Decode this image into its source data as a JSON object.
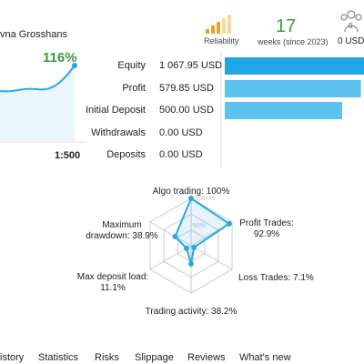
{
  "profile": {
    "name": "vna Grosshans",
    "growth": "116%",
    "leverage": "1:500"
  },
  "stats": {
    "reliability": "Reliability",
    "weeks": "17",
    "weeks_label": "weeks (since 2023)",
    "subscribers": "0",
    "subscribers_funds": "0 USD"
  },
  "balance": {
    "rows": [
      {
        "label": "Equity",
        "text": "1 067.95 USD",
        "amount": 1067.95
      },
      {
        "label": "Profit",
        "text": "579.85 USD",
        "amount": 579.85
      },
      {
        "label": "Initial Deposit",
        "text": "500.00 USD",
        "amount": 500.0
      },
      {
        "label": "Withdrawals",
        "text": "0.00 USD",
        "amount": 0
      },
      {
        "label": "Deposits",
        "text": "0.00 USD",
        "amount": 0
      }
    ]
  },
  "radar": {
    "max": 100,
    "ring_labels": [
      "100+%",
      "50%"
    ],
    "axes": [
      {
        "label": "Algo trading: 100%",
        "value": 100
      },
      {
        "label": "Profit Trades: 92.9%",
        "value": 92.9
      },
      {
        "label": "Loss Trades: 7.1%",
        "value": 7.1
      },
      {
        "label": "Trading activity: 38.2%",
        "value": 38.2
      },
      {
        "label": "Max deposit load: 11.1%",
        "value": 11.1
      },
      {
        "label": "Maximum drawdown: 38.9%",
        "value": 38.9
      }
    ]
  },
  "tabs": [
    "istory",
    "Statistics",
    "Risks",
    "Slippage",
    "Reviews",
    "What's new"
  ]
}
